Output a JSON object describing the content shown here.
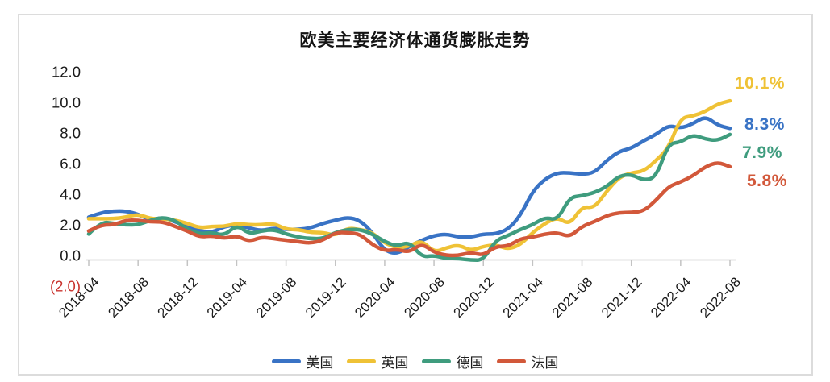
{
  "header": {
    "title": "欧美主要经济体通货膨胀走势"
  },
  "colors": {
    "us_blue": "#3973C5",
    "uk_gold": "#EFC236",
    "de_teal": "#3F9C7E",
    "fr_orange": "#D2583A",
    "negative_label_red": "#C9342F",
    "axis_gray": "#C3C3C3",
    "text_dark": "#1a1a1a",
    "card_border": "#dcdcdc"
  },
  "chart_data": {
    "type": "line",
    "title": "欧美主要经济体通货膨胀走势",
    "xlabel": "",
    "ylabel": "",
    "ylim": [
      -2,
      12
    ],
    "grid": false,
    "legend_position": "bottom",
    "y_ticks": [
      {
        "label": "12.0",
        "value": 12,
        "negative": false
      },
      {
        "label": "10.0",
        "value": 10,
        "negative": false
      },
      {
        "label": "8.0",
        "value": 8,
        "negative": false
      },
      {
        "label": "6.0",
        "value": 6,
        "negative": false
      },
      {
        "label": "4.0",
        "value": 4,
        "negative": false
      },
      {
        "label": "2.0",
        "value": 2,
        "negative": false
      },
      {
        "label": "0.0",
        "value": 0,
        "negative": false
      },
      {
        "label": "(2.0)",
        "value": -2,
        "negative": true
      }
    ],
    "x_tick_labels": [
      "2018-04",
      "2018-08",
      "2018-12",
      "2019-04",
      "2019-08",
      "2019-12",
      "2020-04",
      "2020-08",
      "2020-12",
      "2021-04",
      "2021-08",
      "2021-12",
      "2022-04",
      "2022-08"
    ],
    "x_tick_every": 4,
    "x": [
      "2018-04",
      "2018-05",
      "2018-06",
      "2018-07",
      "2018-08",
      "2018-09",
      "2018-10",
      "2018-11",
      "2018-12",
      "2019-01",
      "2019-02",
      "2019-03",
      "2019-04",
      "2019-05",
      "2019-06",
      "2019-07",
      "2019-08",
      "2019-09",
      "2019-10",
      "2019-11",
      "2019-12",
      "2020-01",
      "2020-02",
      "2020-03",
      "2020-04",
      "2020-05",
      "2020-06",
      "2020-07",
      "2020-08",
      "2020-09",
      "2020-10",
      "2020-11",
      "2020-12",
      "2021-01",
      "2021-02",
      "2021-03",
      "2021-04",
      "2021-05",
      "2021-06",
      "2021-07",
      "2021-08",
      "2021-09",
      "2021-10",
      "2021-11",
      "2021-12",
      "2022-01",
      "2022-02",
      "2022-03",
      "2022-04",
      "2022-05",
      "2022-06",
      "2022-07",
      "2022-08"
    ],
    "series": [
      {
        "id": "us",
        "name": "美国",
        "color": "#3973C5",
        "end_label": "8.3%",
        "values": [
          2.5,
          2.8,
          2.9,
          2.9,
          2.7,
          2.3,
          2.5,
          2.2,
          1.9,
          1.6,
          1.5,
          1.9,
          2.0,
          1.8,
          1.6,
          1.8,
          1.7,
          1.7,
          1.8,
          2.1,
          2.3,
          2.5,
          2.3,
          1.5,
          0.3,
          0.1,
          0.6,
          1.0,
          1.3,
          1.4,
          1.2,
          1.2,
          1.4,
          1.4,
          1.7,
          2.6,
          4.2,
          5.0,
          5.4,
          5.4,
          5.3,
          5.4,
          6.2,
          6.8,
          7.0,
          7.5,
          7.9,
          8.5,
          8.3,
          8.6,
          9.1,
          8.5,
          8.3
        ]
      },
      {
        "id": "uk",
        "name": "英国",
        "color": "#EFC236",
        "end_label": "10.1%",
        "values": [
          2.4,
          2.4,
          2.4,
          2.5,
          2.7,
          2.4,
          2.4,
          2.3,
          2.1,
          1.8,
          1.9,
          1.9,
          2.1,
          2.0,
          2.0,
          2.1,
          1.7,
          1.7,
          1.5,
          1.5,
          1.3,
          1.8,
          1.7,
          1.5,
          0.8,
          0.5,
          0.6,
          1.0,
          0.2,
          0.5,
          0.7,
          0.3,
          0.6,
          0.7,
          0.4,
          0.7,
          1.5,
          2.1,
          2.5,
          2.0,
          3.2,
          3.1,
          4.2,
          5.1,
          5.4,
          5.5,
          6.2,
          7.0,
          9.0,
          9.1,
          9.4,
          9.9,
          10.1
        ]
      },
      {
        "id": "de",
        "name": "德国",
        "color": "#3F9C7E",
        "end_label": "7.9%",
        "values": [
          1.4,
          2.2,
          2.1,
          2.0,
          2.0,
          2.3,
          2.5,
          2.3,
          1.7,
          1.4,
          1.5,
          1.3,
          2.0,
          1.4,
          1.6,
          1.7,
          1.4,
          1.2,
          1.1,
          1.1,
          1.5,
          1.7,
          1.7,
          1.4,
          0.9,
          0.6,
          0.9,
          -0.1,
          0.0,
          -0.2,
          -0.2,
          -0.3,
          -0.3,
          1.0,
          1.3,
          1.7,
          2.0,
          2.5,
          2.3,
          3.8,
          3.9,
          4.1,
          4.5,
          5.2,
          5.3,
          4.9,
          5.1,
          7.3,
          7.4,
          7.9,
          7.6,
          7.5,
          7.9
        ]
      },
      {
        "id": "fr",
        "name": "法国",
        "color": "#D2583A",
        "end_label": "5.8%",
        "values": [
          1.6,
          2.0,
          2.0,
          2.3,
          2.3,
          2.2,
          2.2,
          1.9,
          1.6,
          1.2,
          1.3,
          1.1,
          1.3,
          0.9,
          1.2,
          1.1,
          1.0,
          0.9,
          0.8,
          1.0,
          1.5,
          1.5,
          1.4,
          0.7,
          0.3,
          0.4,
          0.2,
          0.8,
          0.2,
          0.0,
          0.0,
          0.2,
          0.0,
          0.6,
          0.6,
          1.1,
          1.2,
          1.4,
          1.5,
          1.2,
          1.9,
          2.2,
          2.6,
          2.8,
          2.8,
          2.9,
          3.6,
          4.5,
          4.8,
          5.2,
          5.8,
          6.1,
          5.8
        ]
      }
    ]
  }
}
